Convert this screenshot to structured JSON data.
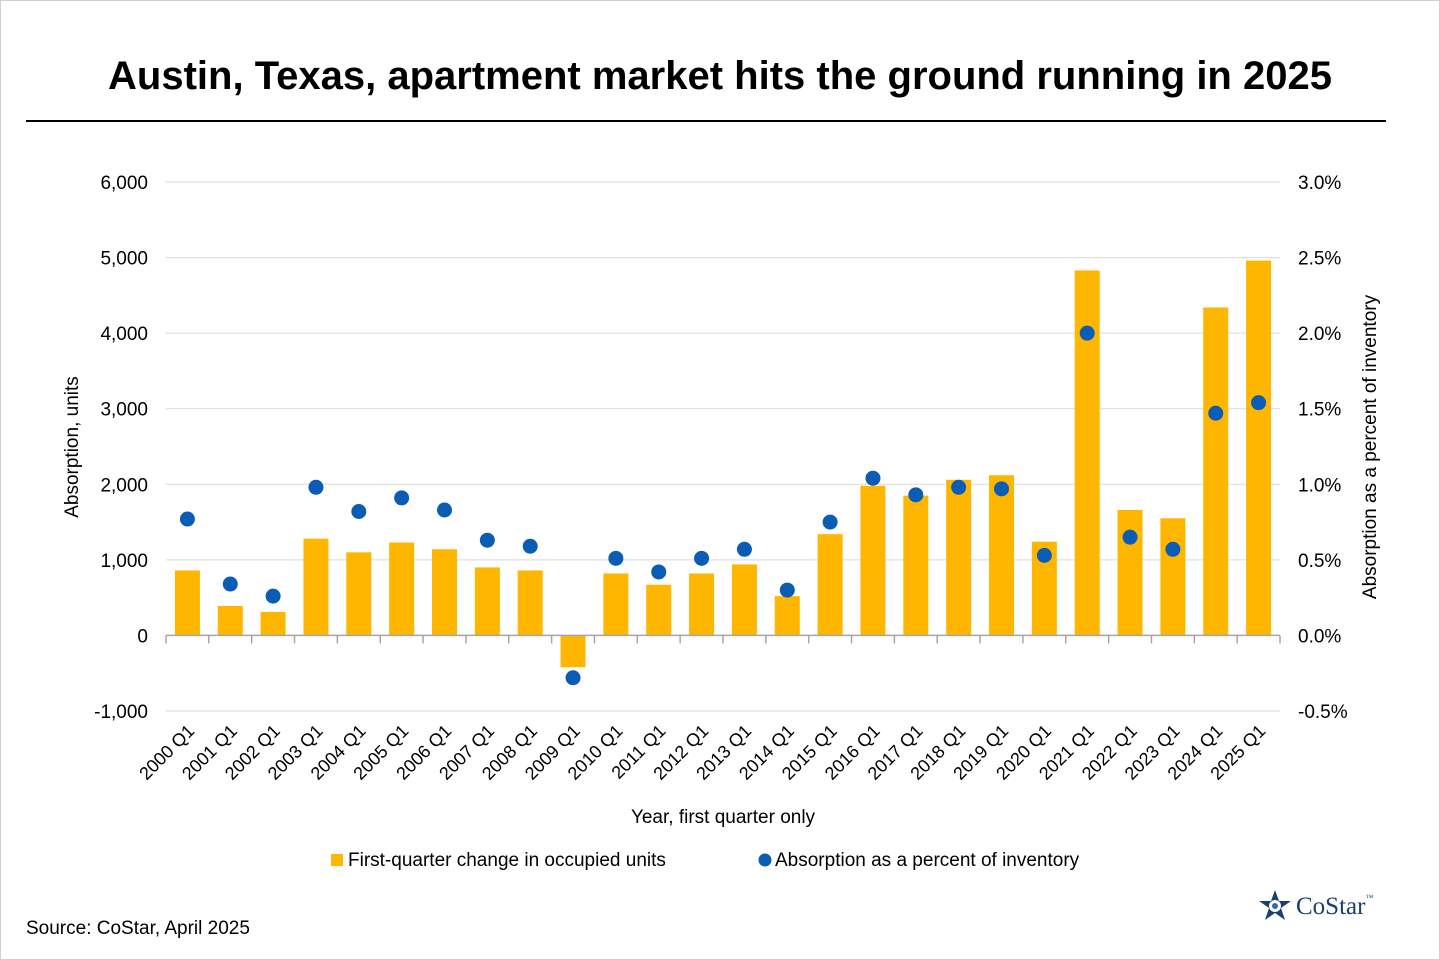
{
  "title": "Austin, Texas, apartment market hits the ground running in 2025",
  "source": "Source: CoStar, April 2025",
  "logo": {
    "text": "CoStar",
    "tm": "™",
    "icon": "costar-star-icon"
  },
  "colors": {
    "bar": "#FFB600",
    "dot": "#0B5CB5",
    "grid": "#d9d9d9",
    "axis": "#a6a6a6"
  },
  "chart_data": {
    "type": "bar",
    "title": "Austin, Texas, apartment market hits the ground running in 2025",
    "xlabel": "Year, first quarter only",
    "ylabel": "Absorption, units",
    "y2label": "Absorption as a percent of inventory",
    "ylim": [
      -1000,
      6000
    ],
    "y2lim": [
      -0.5,
      3.0
    ],
    "yticks": [
      "-1,000",
      "0",
      "1,000",
      "2,000",
      "3,000",
      "4,000",
      "5,000",
      "6,000"
    ],
    "y2ticks": [
      "-0.5%",
      "0.0%",
      "0.5%",
      "1.0%",
      "1.5%",
      "2.0%",
      "2.5%",
      "3.0%"
    ],
    "grid": true,
    "legend": "bottom",
    "categories": [
      "2000 Q1",
      "2001 Q1",
      "2002 Q1",
      "2003 Q1",
      "2004 Q1",
      "2005 Q1",
      "2006 Q1",
      "2007 Q1",
      "2008 Q1",
      "2009 Q1",
      "2010 Q1",
      "2011 Q1",
      "2012 Q1",
      "2013 Q1",
      "2014 Q1",
      "2015 Q1",
      "2016 Q1",
      "2017 Q1",
      "2018 Q1",
      "2019 Q1",
      "2020 Q1",
      "2021 Q1",
      "2022 Q1",
      "2023 Q1",
      "2024 Q1",
      "2025 Q1"
    ],
    "series": [
      {
        "name": "First-quarter change in occupied units",
        "type": "bar",
        "axis": "left",
        "values": [
          860,
          390,
          310,
          1280,
          1100,
          1230,
          1140,
          900,
          860,
          -420,
          820,
          670,
          820,
          940,
          520,
          1340,
          1980,
          1850,
          2060,
          2120,
          1240,
          4830,
          1660,
          1550,
          4340,
          4960
        ]
      },
      {
        "name": "Absorption as a percent of inventory",
        "type": "scatter",
        "axis": "right",
        "values": [
          0.77,
          0.34,
          0.26,
          0.98,
          0.82,
          0.91,
          0.83,
          0.63,
          0.59,
          -0.28,
          0.51,
          0.42,
          0.51,
          0.57,
          0.3,
          0.75,
          1.04,
          0.93,
          0.98,
          0.97,
          0.53,
          2.0,
          0.65,
          0.57,
          1.47,
          1.54
        ]
      }
    ]
  }
}
